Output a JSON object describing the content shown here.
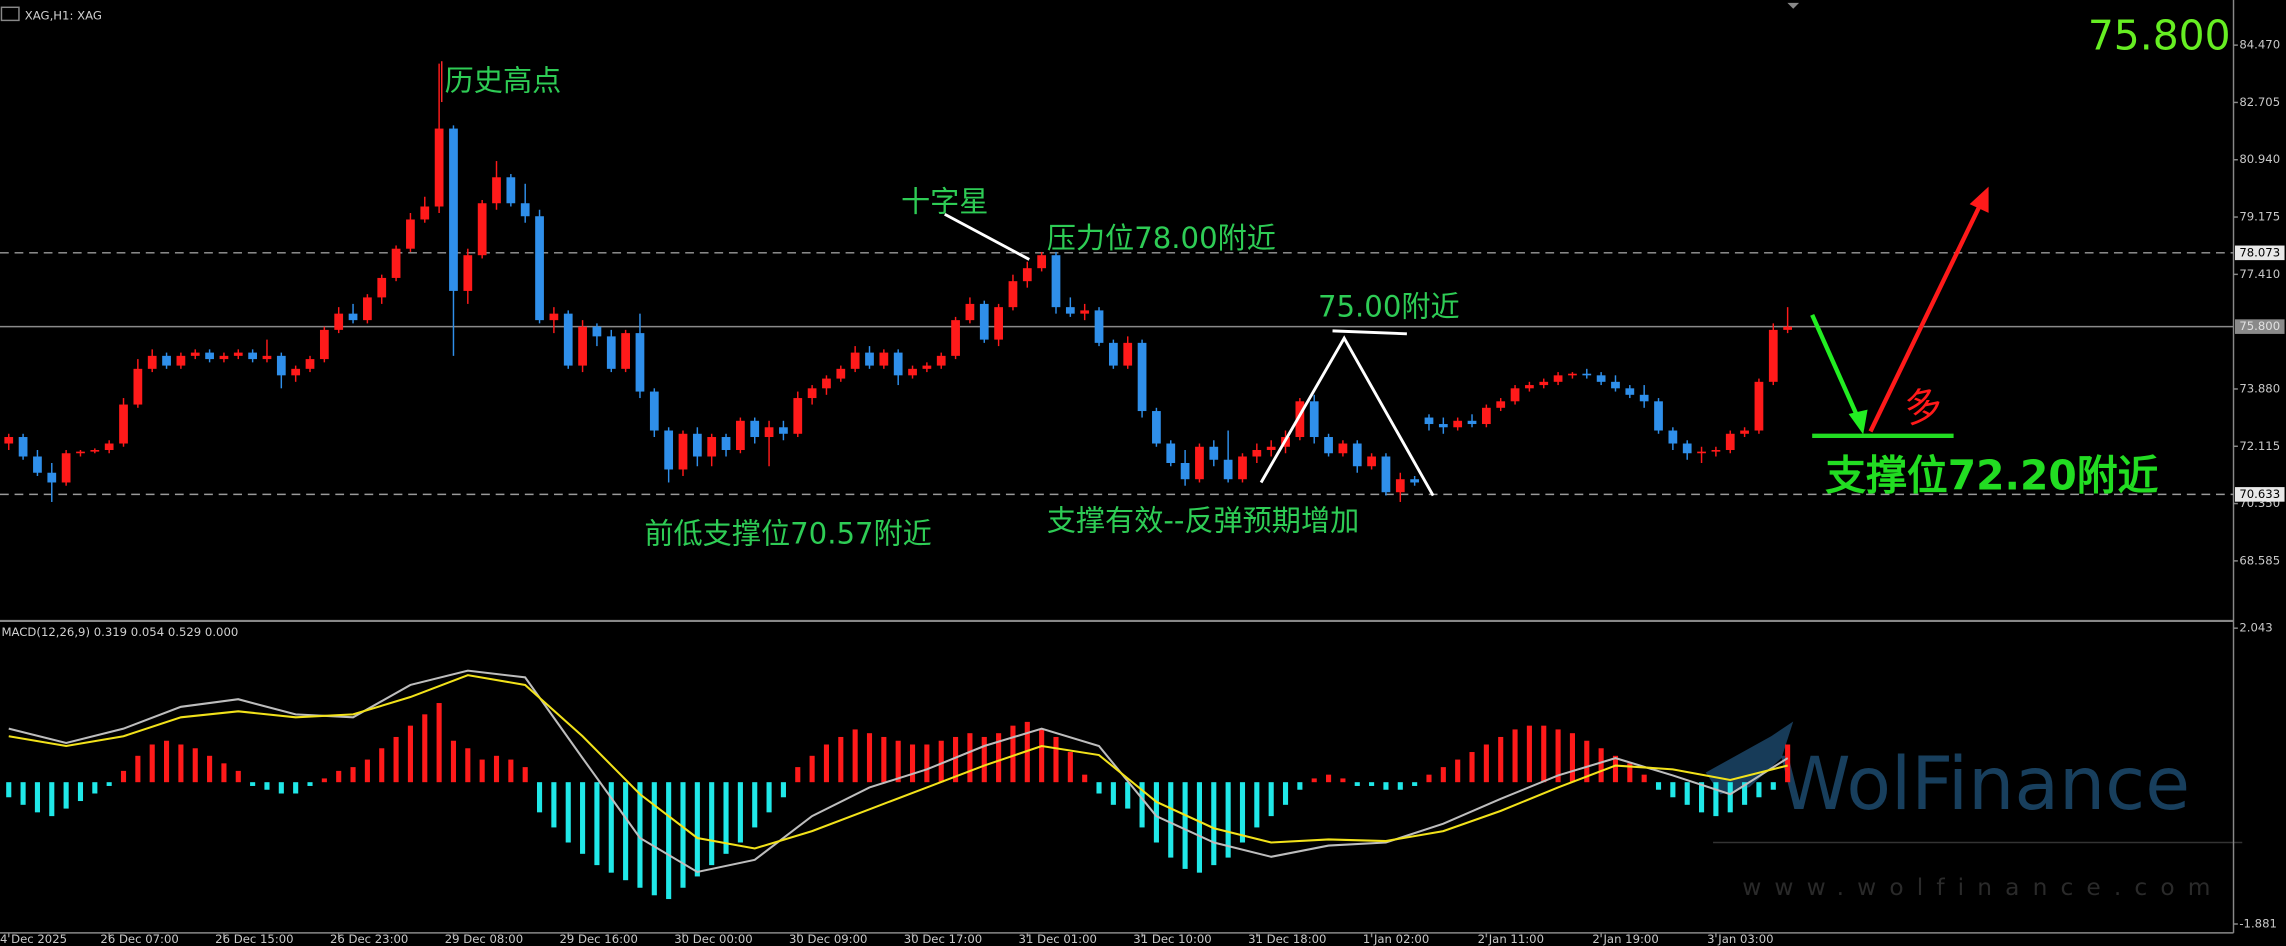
{
  "header": "XAG,H1: XAG",
  "annotations": {
    "high": "历史高点",
    "doji": "十字星",
    "resistance": "压力位78.00附近",
    "near75": "75.00附近",
    "prev_low": "前低支撑位70.57附近",
    "support_ok": "支撑有效--反弹预期增加",
    "support": "支撑位72.20附近",
    "long": "多"
  },
  "watermark": {
    "brand": "WolFinance",
    "url": "www.wolfinance.com"
  },
  "chart_data": [
    {
      "type": "candlestick",
      "up_color": "#ff1a1a",
      "down_color": "#2f8fea",
      "ylim": [
        66.78,
        85.86
      ],
      "yticks": [
        {
          "value": 84.47,
          "label": "84.470"
        },
        82.705,
        {
          "value": 80.94,
          "label": "80.940"
        },
        79.175,
        {
          "value": 77.41,
          "label": "77.410"
        },
        {
          "value": 73.88,
          "label": "73.880"
        },
        72.115,
        {
          "value": 70.35,
          "label": "70.350"
        },
        68.585
      ],
      "levels": [
        78.073,
        70.633
      ],
      "current_price": {
        "value": 75.8,
        "label": "75.800"
      },
      "categories": [
        "4 Dec 2025",
        null,
        null,
        null,
        null,
        null,
        null,
        "26 Dec 07:00",
        null,
        null,
        null,
        null,
        null,
        null,
        null,
        "26 Dec 15:00",
        null,
        null,
        null,
        null,
        null,
        null,
        null,
        "26 Dec 23:00",
        null,
        null,
        null,
        null,
        null,
        null,
        null,
        "29 Dec 08:00",
        null,
        null,
        null,
        null,
        null,
        null,
        null,
        "29 Dec 16:00",
        null,
        null,
        null,
        null,
        null,
        null,
        null,
        "30 Dec 00:00",
        null,
        null,
        null,
        null,
        null,
        null,
        null,
        "30 Dec 09:00",
        null,
        null,
        null,
        null,
        null,
        null,
        null,
        "30 Dec 17:00",
        null,
        null,
        null,
        null,
        null,
        null,
        null,
        "31 Dec 01:00",
        null,
        null,
        null,
        null,
        null,
        null,
        null,
        "31 Dec 10:00",
        null,
        null,
        null,
        null,
        null,
        null,
        null,
        "31 Dec 18:00",
        null,
        null,
        null,
        null,
        null,
        null,
        null,
        "1 Jan 02:00",
        null,
        null,
        null,
        null,
        null,
        null,
        null,
        "2 Jan 11:00",
        null,
        null,
        null,
        null,
        null,
        null,
        null,
        "2 Jan 19:00",
        null,
        null,
        null,
        null,
        null,
        null,
        null,
        "3 Jan 03:00",
        null,
        null,
        null,
        null,
        null
      ],
      "candles": [
        [
          72.2,
          72.5,
          72.0,
          72.4
        ],
        [
          72.4,
          72.5,
          71.7,
          71.8
        ],
        [
          71.8,
          72.0,
          71.2,
          71.3
        ],
        [
          71.3,
          71.6,
          70.4,
          71.0
        ],
        [
          71.0,
          72.0,
          70.9,
          71.9
        ],
        [
          71.9,
          72.0,
          71.8,
          71.95
        ],
        [
          71.95,
          72.05,
          71.9,
          72.0
        ],
        [
          72.0,
          72.3,
          71.9,
          72.2
        ],
        [
          72.2,
          73.6,
          72.1,
          73.4
        ],
        [
          73.4,
          74.8,
          73.3,
          74.5
        ],
        [
          74.5,
          75.1,
          74.4,
          74.9
        ],
        [
          74.9,
          75.0,
          74.5,
          74.6
        ],
        [
          74.6,
          75.0,
          74.5,
          74.9
        ],
        [
          74.9,
          75.1,
          74.8,
          75.0
        ],
        [
          75.0,
          75.1,
          74.7,
          74.8
        ],
        [
          74.8,
          75.0,
          74.7,
          74.9
        ],
        [
          74.9,
          75.1,
          74.8,
          75.0
        ],
        [
          75.0,
          75.1,
          74.7,
          74.8
        ],
        [
          74.8,
          75.4,
          74.7,
          74.9
        ],
        [
          74.9,
          75.0,
          73.9,
          74.3
        ],
        [
          74.3,
          74.6,
          74.1,
          74.5
        ],
        [
          74.5,
          74.9,
          74.4,
          74.8
        ],
        [
          74.8,
          75.8,
          74.7,
          75.7
        ],
        [
          75.7,
          76.4,
          75.6,
          76.2
        ],
        [
          76.2,
          76.5,
          75.9,
          76.0
        ],
        [
          76.0,
          76.8,
          75.9,
          76.7
        ],
        [
          76.7,
          77.4,
          76.5,
          77.3
        ],
        [
          77.3,
          78.3,
          77.2,
          78.2
        ],
        [
          78.2,
          79.3,
          78.1,
          79.1
        ],
        [
          79.1,
          79.8,
          79.0,
          79.5
        ],
        [
          79.5,
          83.9,
          79.3,
          81.9
        ],
        [
          81.9,
          82.0,
          74.9,
          76.9
        ],
        [
          76.9,
          78.2,
          76.5,
          78.0
        ],
        [
          78.0,
          79.7,
          77.9,
          79.6
        ],
        [
          79.6,
          80.9,
          79.4,
          80.4
        ],
        [
          80.4,
          80.5,
          79.5,
          79.6
        ],
        [
          79.6,
          80.2,
          79.0,
          79.2
        ],
        [
          79.2,
          79.4,
          75.9,
          76.0
        ],
        [
          76.0,
          76.4,
          75.6,
          76.2
        ],
        [
          76.2,
          76.3,
          74.5,
          74.6
        ],
        [
          74.6,
          76.0,
          74.4,
          75.8
        ],
        [
          75.8,
          75.9,
          75.2,
          75.5
        ],
        [
          75.5,
          75.7,
          74.4,
          74.5
        ],
        [
          74.5,
          75.7,
          74.4,
          75.6
        ],
        [
          75.6,
          76.2,
          73.6,
          73.8
        ],
        [
          73.8,
          73.9,
          72.4,
          72.6
        ],
        [
          72.6,
          72.7,
          71.0,
          71.4
        ],
        [
          71.4,
          72.6,
          71.2,
          72.5
        ],
        [
          72.5,
          72.7,
          71.5,
          71.8
        ],
        [
          71.8,
          72.5,
          71.5,
          72.4
        ],
        [
          72.4,
          72.5,
          71.8,
          72.0
        ],
        [
          72.0,
          73.0,
          71.9,
          72.9
        ],
        [
          72.9,
          73.0,
          72.2,
          72.4
        ],
        [
          72.4,
          72.9,
          71.5,
          72.7
        ],
        [
          72.7,
          72.9,
          72.3,
          72.5
        ],
        [
          72.5,
          73.8,
          72.4,
          73.6
        ],
        [
          73.6,
          74.0,
          73.4,
          73.9
        ],
        [
          73.9,
          74.3,
          73.7,
          74.2
        ],
        [
          74.2,
          74.6,
          74.1,
          74.5
        ],
        [
          74.5,
          75.2,
          74.4,
          75.0
        ],
        [
          75.0,
          75.2,
          74.5,
          74.6
        ],
        [
          74.6,
          75.1,
          74.5,
          75.0
        ],
        [
          75.0,
          75.1,
          74.0,
          74.3
        ],
        [
          74.3,
          74.6,
          74.2,
          74.5
        ],
        [
          74.5,
          74.7,
          74.4,
          74.6
        ],
        [
          74.6,
          75.0,
          74.5,
          74.9
        ],
        [
          74.9,
          76.1,
          74.8,
          76.0
        ],
        [
          76.0,
          76.7,
          75.9,
          76.5
        ],
        [
          76.5,
          76.6,
          75.3,
          75.4
        ],
        [
          75.4,
          76.5,
          75.2,
          76.4
        ],
        [
          76.4,
          77.4,
          76.3,
          77.2
        ],
        [
          77.2,
          77.8,
          77.0,
          77.6
        ],
        [
          77.6,
          78.1,
          77.5,
          78.0
        ],
        [
          78.0,
          78.1,
          76.2,
          76.4
        ],
        [
          76.4,
          76.7,
          76.1,
          76.2
        ],
        [
          76.2,
          76.5,
          76.0,
          76.3
        ],
        [
          76.3,
          76.4,
          75.2,
          75.3
        ],
        [
          75.3,
          75.4,
          74.5,
          74.6
        ],
        [
          74.6,
          75.5,
          74.5,
          75.3
        ],
        [
          75.3,
          75.4,
          73.0,
          73.2
        ],
        [
          73.2,
          73.3,
          72.1,
          72.2
        ],
        [
          72.2,
          72.3,
          71.5,
          71.6
        ],
        [
          71.6,
          72.0,
          70.9,
          71.1
        ],
        [
          71.1,
          72.2,
          71.0,
          72.1
        ],
        [
          72.1,
          72.3,
          71.5,
          71.7
        ],
        [
          71.7,
          72.6,
          71.0,
          71.1
        ],
        [
          71.1,
          71.9,
          71.0,
          71.8
        ],
        [
          71.8,
          72.2,
          71.6,
          72.0
        ],
        [
          72.0,
          72.3,
          71.8,
          72.1
        ],
        [
          72.1,
          72.6,
          71.9,
          72.4
        ],
        [
          72.4,
          73.6,
          72.3,
          73.5
        ],
        [
          73.5,
          73.7,
          72.2,
          72.4
        ],
        [
          72.4,
          72.5,
          71.8,
          71.9
        ],
        [
          71.9,
          72.3,
          71.8,
          72.2
        ],
        [
          72.2,
          72.3,
          71.3,
          71.5
        ],
        [
          71.5,
          71.9,
          71.4,
          71.8
        ],
        [
          71.8,
          71.9,
          70.6,
          70.7
        ],
        [
          70.7,
          71.3,
          70.4,
          71.1
        ],
        [
          71.1,
          71.2,
          70.9,
          71.0
        ],
        [
          73.0,
          73.1,
          72.6,
          72.8
        ],
        [
          72.8,
          73.0,
          72.5,
          72.7
        ],
        [
          72.7,
          73.0,
          72.6,
          72.9
        ],
        [
          72.9,
          73.1,
          72.7,
          72.8
        ],
        [
          72.8,
          73.4,
          72.7,
          73.3
        ],
        [
          73.3,
          73.6,
          73.2,
          73.5
        ],
        [
          73.5,
          74.0,
          73.4,
          73.9
        ],
        [
          73.9,
          74.1,
          73.8,
          74.0
        ],
        [
          74.0,
          74.2,
          73.9,
          74.1
        ],
        [
          74.1,
          74.4,
          74.0,
          74.3
        ],
        [
          74.3,
          74.4,
          74.2,
          74.35
        ],
        [
          74.35,
          74.5,
          74.2,
          74.3
        ],
        [
          74.3,
          74.4,
          74.0,
          74.1
        ],
        [
          74.1,
          74.3,
          73.8,
          73.9
        ],
        [
          73.9,
          74.0,
          73.6,
          73.7
        ],
        [
          73.7,
          74.0,
          73.3,
          73.5
        ],
        [
          73.5,
          73.6,
          72.5,
          72.6
        ],
        [
          72.6,
          72.7,
          72.0,
          72.2
        ],
        [
          72.2,
          72.3,
          71.7,
          71.9
        ],
        [
          71.9,
          72.1,
          71.6,
          71.95
        ],
        [
          71.95,
          72.1,
          71.8,
          72.0
        ],
        [
          72.0,
          72.6,
          71.9,
          72.5
        ],
        [
          72.5,
          72.7,
          72.4,
          72.6
        ],
        [
          72.6,
          74.2,
          72.5,
          74.1
        ],
        [
          74.1,
          75.9,
          74.0,
          75.7
        ],
        [
          75.7,
          76.4,
          75.6,
          75.8
        ]
      ]
    },
    {
      "type": "macd",
      "title": "MACD(12,26,9) 0.319 0.054 0.529 0.000",
      "ylim": [
        -1.96,
        2.1
      ],
      "yticks": [
        2.043,
        -1.881
      ],
      "pos_color": "#ff1a1a",
      "neg_color": "#20e8e8",
      "histogram": [
        -0.2,
        -0.3,
        -0.4,
        -0.45,
        -0.35,
        -0.25,
        -0.15,
        -0.05,
        0.15,
        0.35,
        0.5,
        0.55,
        0.5,
        0.45,
        0.35,
        0.25,
        0.15,
        -0.05,
        -0.1,
        -0.15,
        -0.15,
        -0.05,
        0.05,
        0.15,
        0.2,
        0.3,
        0.45,
        0.6,
        0.75,
        0.9,
        1.05,
        0.55,
        0.45,
        0.3,
        0.35,
        0.3,
        0.2,
        -0.4,
        -0.6,
        -0.8,
        -0.95,
        -1.1,
        -1.2,
        -1.3,
        -1.4,
        -1.5,
        -1.55,
        -1.4,
        -1.25,
        -1.1,
        -0.95,
        -0.8,
        -0.6,
        -0.4,
        -0.2,
        0.2,
        0.35,
        0.5,
        0.6,
        0.7,
        0.65,
        0.6,
        0.55,
        0.5,
        0.5,
        0.55,
        0.6,
        0.65,
        0.6,
        0.65,
        0.75,
        0.8,
        0.7,
        0.6,
        0.4,
        0.1,
        -0.15,
        -0.3,
        -0.35,
        -0.6,
        -0.8,
        -1.0,
        -1.15,
        -1.2,
        -1.1,
        -1.0,
        -0.8,
        -0.6,
        -0.45,
        -0.3,
        -0.1,
        0.05,
        0.1,
        0.05,
        -0.05,
        -0.05,
        -0.1,
        -0.1,
        -0.05,
        0.1,
        0.2,
        0.3,
        0.4,
        0.5,
        0.6,
        0.7,
        0.75,
        0.75,
        0.7,
        0.65,
        0.55,
        0.45,
        0.35,
        0.25,
        0.1,
        -0.1,
        -0.2,
        -0.3,
        -0.4,
        -0.45,
        -0.4,
        -0.3,
        -0.2,
        -0.1,
        0.5
      ],
      "series": [
        {
          "color": "#bdbdbd",
          "x": [
            0,
            4,
            8,
            12,
            16,
            20,
            24,
            28,
            32,
            36,
            40,
            44,
            48,
            52,
            56,
            60,
            64,
            68,
            72,
            76,
            80,
            84,
            88,
            92,
            96,
            100,
            104,
            108,
            112,
            116,
            120,
            124
          ],
          "values": [
            0.71,
            0.52,
            0.71,
            1.0,
            1.1,
            0.9,
            0.86,
            1.29,
            1.48,
            1.39,
            0.32,
            -0.74,
            -1.19,
            -1.03,
            -0.45,
            -0.07,
            0.17,
            0.48,
            0.71,
            0.48,
            -0.45,
            -0.8,
            -0.99,
            -0.84,
            -0.8,
            -0.55,
            -0.22,
            0.09,
            0.32,
            0.09,
            -0.16,
            0.32
          ]
        },
        {
          "color": "#f2e21a",
          "x": [
            0,
            4,
            8,
            12,
            16,
            20,
            24,
            28,
            32,
            36,
            40,
            44,
            48,
            52,
            56,
            60,
            64,
            68,
            72,
            76,
            80,
            84,
            88,
            92,
            96,
            100,
            104,
            108,
            112,
            116,
            120,
            124
          ],
          "values": [
            0.61,
            0.48,
            0.61,
            0.86,
            0.94,
            0.86,
            0.9,
            1.13,
            1.42,
            1.29,
            0.61,
            -0.16,
            -0.74,
            -0.88,
            -0.65,
            -0.36,
            -0.07,
            0.22,
            0.48,
            0.36,
            -0.26,
            -0.61,
            -0.8,
            -0.76,
            -0.78,
            -0.65,
            -0.38,
            -0.07,
            0.22,
            0.17,
            0.03,
            0.22
          ]
        }
      ]
    }
  ]
}
